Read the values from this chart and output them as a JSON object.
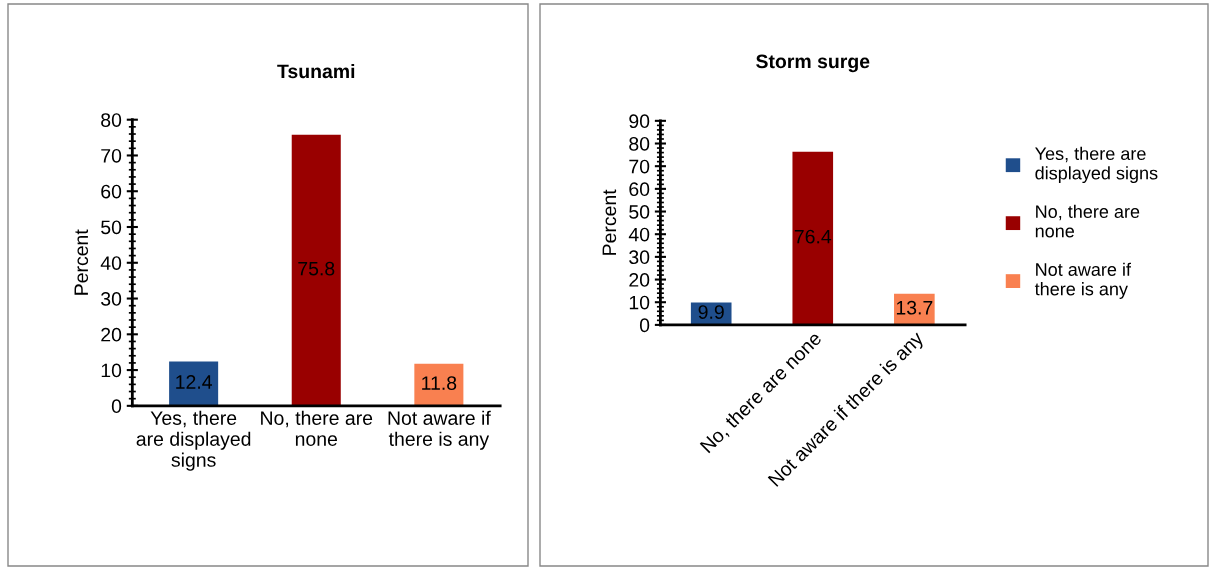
{
  "chart_data": [
    {
      "type": "bar",
      "title": "Tsunami",
      "ylabel": "Percent",
      "categories": [
        "Yes, there are displayed signs",
        "No, there are none",
        "Not aware if there is any"
      ],
      "values": [
        12.4,
        75.8,
        11.8
      ],
      "colors": [
        "#1f4e8c",
        "#990000",
        "#f98050"
      ],
      "ylim": [
        0,
        80
      ],
      "yticks": [
        0,
        10,
        20,
        30,
        40,
        50,
        60,
        70,
        80
      ],
      "grid": false,
      "legend": false,
      "data_labels": true
    },
    {
      "type": "bar",
      "title": "Storm surge",
      "ylabel": "Percent",
      "categories": [
        null,
        "No, there are none",
        "Not aware if there is any"
      ],
      "series": [
        {
          "name": "Yes, there are displayed signs",
          "color": "#1f4e8c",
          "values": [
            9.9,
            null,
            null
          ]
        },
        {
          "name": "No, there are none",
          "color": "#990000",
          "values": [
            null,
            76.4,
            null
          ]
        },
        {
          "name": "Not aware if there is any",
          "color": "#f98050",
          "values": [
            null,
            null,
            13.7
          ]
        }
      ],
      "ylim": [
        0,
        90
      ],
      "yticks": [
        0,
        10,
        20,
        30,
        40,
        50,
        60,
        70,
        80,
        90
      ],
      "grid": false,
      "legend": "right",
      "data_labels": true
    }
  ]
}
